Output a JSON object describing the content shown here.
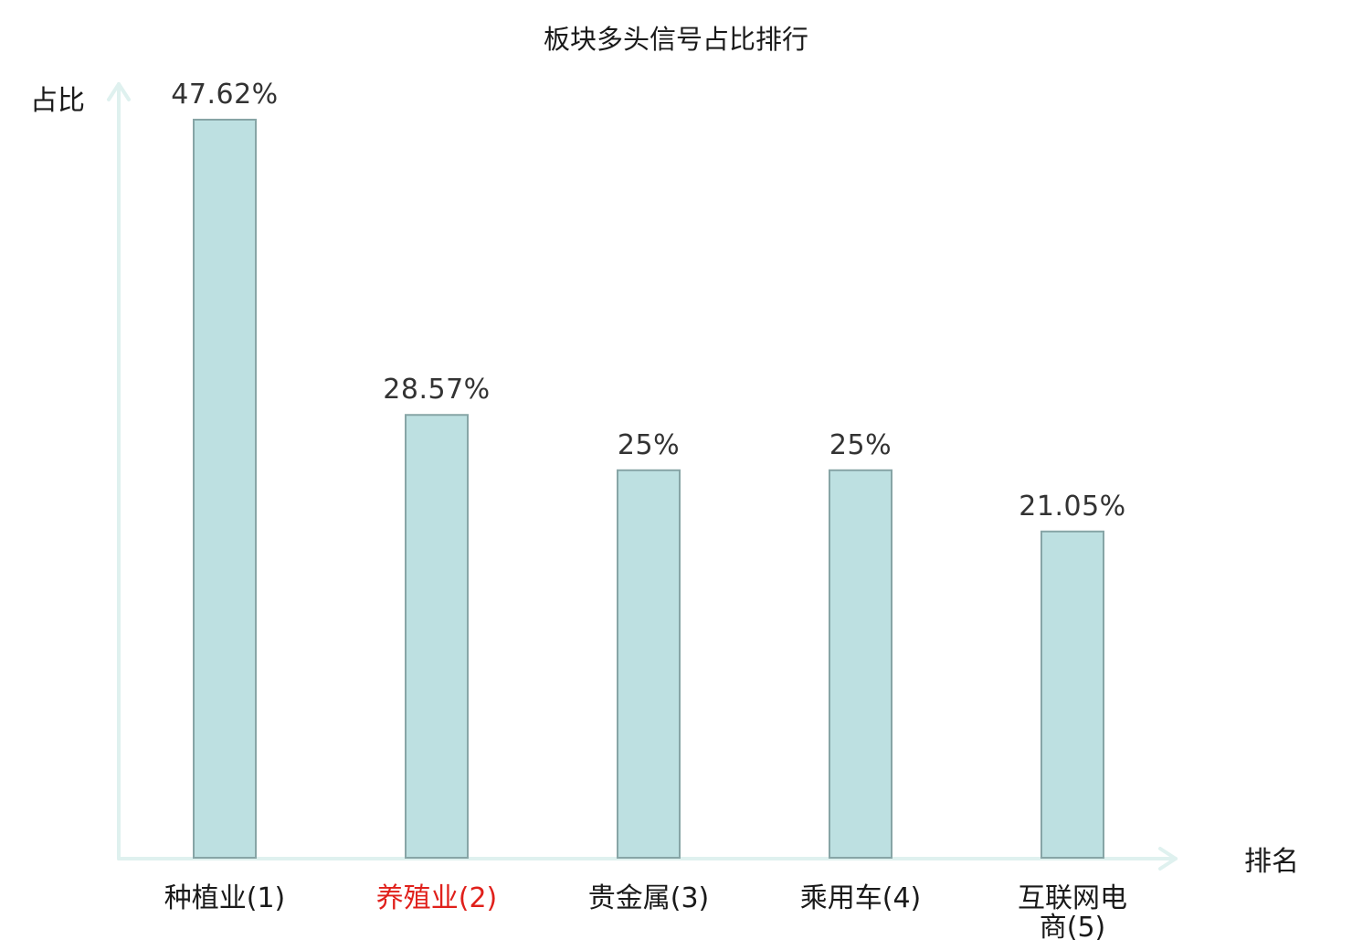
{
  "chart_data": {
    "type": "bar",
    "title": "板块多头信号占比排行",
    "xlabel": "排名",
    "ylabel": "占比",
    "categories": [
      {
        "name": "种植业",
        "rank": "(1)",
        "highlight": false
      },
      {
        "name": "养殖业",
        "rank": "(2)",
        "highlight": true
      },
      {
        "name": "贵金属",
        "rank": "(3)",
        "highlight": false
      },
      {
        "name": "乘用车",
        "rank": "(4)",
        "highlight": false
      },
      {
        "name": "互联网电商",
        "rank": "(5)",
        "highlight": false
      }
    ],
    "values": [
      47.62,
      28.57,
      25,
      25,
      21.05
    ],
    "value_labels": [
      "47.62%",
      "28.57%",
      "25%",
      "25%",
      "21.05%"
    ],
    "ylim": [
      0,
      47.62
    ],
    "grid": false,
    "colors": {
      "bar_fill": "#bde0e1",
      "bar_stroke": "#87a5a6",
      "axis": "#dff1ef",
      "label_normal": "#1a1a1a",
      "label_highlight": "#e0201b"
    }
  }
}
